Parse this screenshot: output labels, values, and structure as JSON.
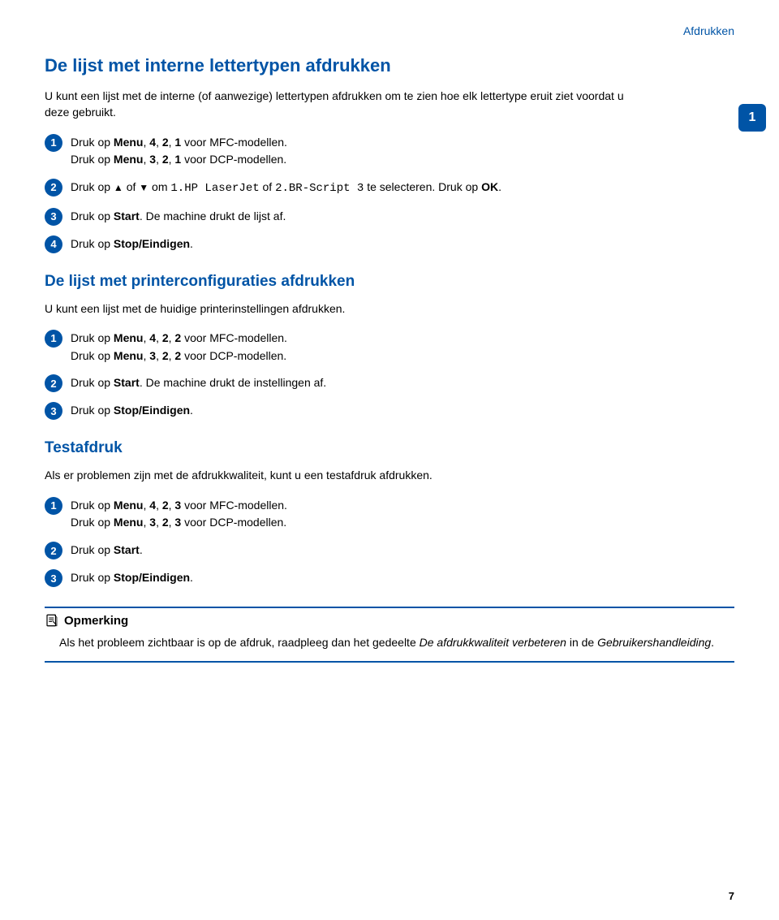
{
  "header": {
    "section_label": "Afdrukken"
  },
  "chapter_tab": {
    "number": "1"
  },
  "section1": {
    "title": "De lijst met interne lettertypen afdrukken",
    "intro": "U kunt een lijst met de interne (of aanwezige) lettertypen afdrukken om te zien hoe elk lettertype eruit ziet voordat u deze gebruikt.",
    "steps": [
      {
        "num": "1",
        "parts": [
          {
            "t": "Druk op "
          },
          {
            "t": "Menu",
            "bold": true
          },
          {
            "t": ", "
          },
          {
            "t": "4",
            "bold": true
          },
          {
            "t": ", "
          },
          {
            "t": "2",
            "bold": true
          },
          {
            "t": ", "
          },
          {
            "t": "1",
            "bold": true
          },
          {
            "t": " voor MFC-modellen."
          },
          {
            "br": true
          },
          {
            "t": "Druk op "
          },
          {
            "t": "Menu",
            "bold": true
          },
          {
            "t": ", "
          },
          {
            "t": "3",
            "bold": true
          },
          {
            "t": ", "
          },
          {
            "t": "2",
            "bold": true
          },
          {
            "t": ", "
          },
          {
            "t": "1",
            "bold": true
          },
          {
            "t": " voor DCP-modellen."
          }
        ]
      },
      {
        "num": "2",
        "parts": [
          {
            "t": "Druk op "
          },
          {
            "t": "▲",
            "arrow": true
          },
          {
            "t": " of "
          },
          {
            "t": "▼",
            "arrow": true
          },
          {
            "t": " om "
          },
          {
            "t": "1.HP LaserJet",
            "mono": true
          },
          {
            "t": " of "
          },
          {
            "t": "2.BR-Script 3",
            "mono": true
          },
          {
            "t": " te selecteren. Druk op "
          },
          {
            "t": "OK",
            "bold": true
          },
          {
            "t": "."
          }
        ]
      },
      {
        "num": "3",
        "parts": [
          {
            "t": "Druk op "
          },
          {
            "t": "Start",
            "bold": true
          },
          {
            "t": ". De machine drukt de lijst af."
          }
        ]
      },
      {
        "num": "4",
        "parts": [
          {
            "t": "Druk op "
          },
          {
            "t": "Stop/Eindigen",
            "bold": true
          },
          {
            "t": "."
          }
        ]
      }
    ]
  },
  "section2": {
    "title": "De lijst met printerconfiguraties afdrukken",
    "intro": "U kunt een lijst met de huidige printerinstellingen afdrukken.",
    "steps": [
      {
        "num": "1",
        "parts": [
          {
            "t": "Druk op "
          },
          {
            "t": "Menu",
            "bold": true
          },
          {
            "t": ", "
          },
          {
            "t": "4",
            "bold": true
          },
          {
            "t": ", "
          },
          {
            "t": "2",
            "bold": true
          },
          {
            "t": ", "
          },
          {
            "t": "2",
            "bold": true
          },
          {
            "t": " voor MFC-modellen."
          },
          {
            "br": true
          },
          {
            "t": "Druk op "
          },
          {
            "t": "Menu",
            "bold": true
          },
          {
            "t": ", "
          },
          {
            "t": "3",
            "bold": true
          },
          {
            "t": ", "
          },
          {
            "t": "2",
            "bold": true
          },
          {
            "t": ", "
          },
          {
            "t": "2",
            "bold": true
          },
          {
            "t": " voor DCP-modellen."
          }
        ]
      },
      {
        "num": "2",
        "parts": [
          {
            "t": "Druk op "
          },
          {
            "t": "Start",
            "bold": true
          },
          {
            "t": ". De machine drukt de instellingen af."
          }
        ]
      },
      {
        "num": "3",
        "parts": [
          {
            "t": "Druk op "
          },
          {
            "t": "Stop/Eindigen",
            "bold": true
          },
          {
            "t": "."
          }
        ]
      }
    ]
  },
  "section3": {
    "title": "Testafdruk",
    "intro": "Als er problemen zijn met de afdrukkwaliteit, kunt u een testafdruk afdrukken.",
    "steps": [
      {
        "num": "1",
        "parts": [
          {
            "t": "Druk op "
          },
          {
            "t": "Menu",
            "bold": true
          },
          {
            "t": ", "
          },
          {
            "t": "4",
            "bold": true
          },
          {
            "t": ", "
          },
          {
            "t": "2",
            "bold": true
          },
          {
            "t": ", "
          },
          {
            "t": "3",
            "bold": true
          },
          {
            "t": " voor MFC-modellen."
          },
          {
            "br": true
          },
          {
            "t": "Druk op "
          },
          {
            "t": "Menu",
            "bold": true
          },
          {
            "t": ", "
          },
          {
            "t": "3",
            "bold": true
          },
          {
            "t": ", "
          },
          {
            "t": "2",
            "bold": true
          },
          {
            "t": ", "
          },
          {
            "t": "3",
            "bold": true
          },
          {
            "t": " voor DCP-modellen."
          }
        ]
      },
      {
        "num": "2",
        "parts": [
          {
            "t": "Druk op "
          },
          {
            "t": "Start",
            "bold": true
          },
          {
            "t": "."
          }
        ]
      },
      {
        "num": "3",
        "parts": [
          {
            "t": "Druk op "
          },
          {
            "t": "Stop/Eindigen",
            "bold": true
          },
          {
            "t": "."
          }
        ]
      }
    ]
  },
  "note": {
    "title": "Opmerking",
    "body_parts": [
      {
        "t": "Als het probleem zichtbaar is op de afdruk, raadpleeg dan het gedeelte "
      },
      {
        "t": "De afdrukkwaliteit verbeteren",
        "italic": true
      },
      {
        "t": " in de "
      },
      {
        "t": "Gebruikershandleiding",
        "italic": true
      },
      {
        "t": "."
      }
    ]
  },
  "footer": {
    "page_number": "7"
  },
  "colors": {
    "brand": "#0054a6",
    "text": "#000000",
    "bg": "#ffffff"
  }
}
